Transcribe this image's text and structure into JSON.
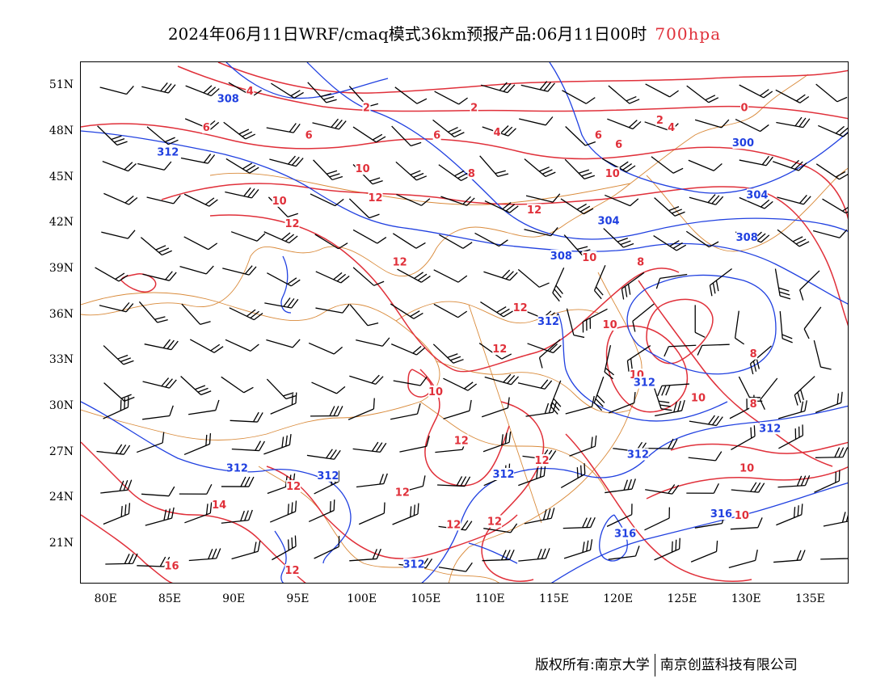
{
  "title": {
    "main": "2024年06月11日WRF/cmaq模式36km预报产品:06月11日00时",
    "level": "700hpa"
  },
  "footer": {
    "left": "版权所有:南京大学",
    "right": "南京创蓝科技有限公司"
  },
  "axes": {
    "lat_labels": [
      "51N",
      "48N",
      "45N",
      "42N",
      "39N",
      "36N",
      "33N",
      "30N",
      "27N",
      "24N",
      "21N"
    ],
    "lon_labels": [
      "80E",
      "85E",
      "90E",
      "95E",
      "100E",
      "105E",
      "110E",
      "115E",
      "120E",
      "125E",
      "130E",
      "135E"
    ],
    "lon_range": [
      78,
      138
    ],
    "lat_range": [
      18.4,
      52.6
    ]
  },
  "colors": {
    "temperature": "#e0303a",
    "height": "#2040e0",
    "boundary": "#d98a3a",
    "wind": "#000000"
  },
  "temperature_labels": [
    {
      "v": "4",
      "lon": 91.2,
      "lat": 50.7
    },
    {
      "v": "2",
      "lon": 100.3,
      "lat": 49.6
    },
    {
      "v": "2",
      "lon": 108.7,
      "lat": 49.6
    },
    {
      "v": "2",
      "lon": 123.2,
      "lat": 48.8
    },
    {
      "v": "0",
      "lon": 129.8,
      "lat": 49.6
    },
    {
      "v": "4",
      "lon": 110.5,
      "lat": 48.0
    },
    {
      "v": "4",
      "lon": 124.1,
      "lat": 48.3
    },
    {
      "v": "6",
      "lon": 87.8,
      "lat": 48.3
    },
    {
      "v": "6",
      "lon": 95.8,
      "lat": 47.8
    },
    {
      "v": "6",
      "lon": 105.8,
      "lat": 47.8
    },
    {
      "v": "6",
      "lon": 118.4,
      "lat": 47.8
    },
    {
      "v": "6",
      "lon": 120.0,
      "lat": 47.2
    },
    {
      "v": "10",
      "lon": 100.0,
      "lat": 45.6
    },
    {
      "v": "8",
      "lon": 108.5,
      "lat": 45.3
    },
    {
      "v": "10",
      "lon": 119.5,
      "lat": 45.3
    },
    {
      "v": "12",
      "lon": 101.0,
      "lat": 43.7
    },
    {
      "v": "10",
      "lon": 93.5,
      "lat": 43.5
    },
    {
      "v": "12",
      "lon": 113.4,
      "lat": 42.9
    },
    {
      "v": "12",
      "lon": 94.5,
      "lat": 42.0
    },
    {
      "v": "12",
      "lon": 102.9,
      "lat": 39.5
    },
    {
      "v": "10",
      "lon": 117.7,
      "lat": 39.8
    },
    {
      "v": "8",
      "lon": 121.7,
      "lat": 39.5
    },
    {
      "v": "12",
      "lon": 112.3,
      "lat": 36.5
    },
    {
      "v": "10",
      "lon": 119.3,
      "lat": 35.4
    },
    {
      "v": "12",
      "lon": 110.7,
      "lat": 33.8
    },
    {
      "v": "10",
      "lon": 121.4,
      "lat": 32.1
    },
    {
      "v": "8",
      "lon": 130.5,
      "lat": 33.5
    },
    {
      "v": "10",
      "lon": 105.7,
      "lat": 31.0
    },
    {
      "v": "10",
      "lon": 126.2,
      "lat": 30.6
    },
    {
      "v": "8",
      "lon": 130.5,
      "lat": 30.2
    },
    {
      "v": "12",
      "lon": 107.7,
      "lat": 27.8
    },
    {
      "v": "12",
      "lon": 114.0,
      "lat": 26.5
    },
    {
      "v": "10",
      "lon": 130.0,
      "lat": 26.0
    },
    {
      "v": "12",
      "lon": 94.6,
      "lat": 24.8
    },
    {
      "v": "12",
      "lon": 103.1,
      "lat": 24.4
    },
    {
      "v": "14",
      "lon": 88.8,
      "lat": 23.6
    },
    {
      "v": "12",
      "lon": 107.1,
      "lat": 22.3
    },
    {
      "v": "12",
      "lon": 110.3,
      "lat": 22.5
    },
    {
      "v": "10",
      "lon": 129.6,
      "lat": 22.9
    },
    {
      "v": "16",
      "lon": 85.1,
      "lat": 19.6
    },
    {
      "v": "12",
      "lon": 94.5,
      "lat": 19.3
    }
  ],
  "height_labels": [
    {
      "v": "308",
      "lon": 89.5,
      "lat": 50.2
    },
    {
      "v": "312",
      "lon": 84.8,
      "lat": 46.7
    },
    {
      "v": "300",
      "lon": 129.7,
      "lat": 47.3
    },
    {
      "v": "304",
      "lon": 130.8,
      "lat": 43.9
    },
    {
      "v": "304",
      "lon": 119.2,
      "lat": 42.2
    },
    {
      "v": "308",
      "lon": 130.0,
      "lat": 41.1
    },
    {
      "v": "308",
      "lon": 115.5,
      "lat": 39.9
    },
    {
      "v": "312",
      "lon": 114.5,
      "lat": 35.6
    },
    {
      "v": "312",
      "lon": 122.0,
      "lat": 31.6
    },
    {
      "v": "312",
      "lon": 131.8,
      "lat": 28.6
    },
    {
      "v": "312",
      "lon": 121.5,
      "lat": 26.9
    },
    {
      "v": "312",
      "lon": 111.0,
      "lat": 25.6
    },
    {
      "v": "312",
      "lon": 90.2,
      "lat": 26.0
    },
    {
      "v": "312",
      "lon": 97.3,
      "lat": 25.5
    },
    {
      "v": "316",
      "lon": 128.0,
      "lat": 23.0
    },
    {
      "v": "316",
      "lon": 120.5,
      "lat": 21.7
    },
    {
      "v": "312",
      "lon": 104.0,
      "lat": 19.7
    }
  ]
}
